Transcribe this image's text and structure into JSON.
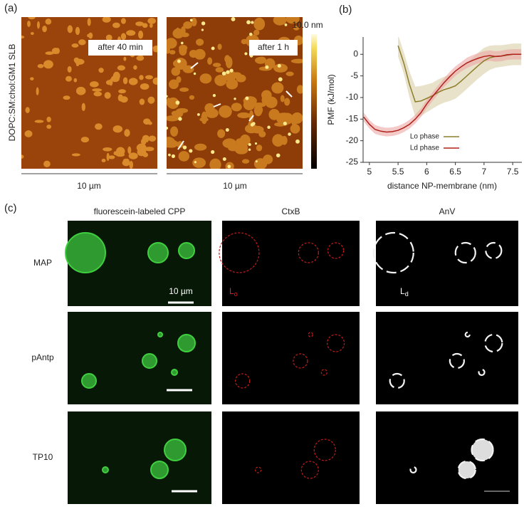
{
  "panel_a": {
    "label": "(a)",
    "side_label": "DOPC:SM:chol:GM1 SLB",
    "images": [
      {
        "caption": "after 40 min",
        "scale": "10 µm"
      },
      {
        "caption": "after 1 h",
        "scale": "10 µm"
      }
    ],
    "colorbar_max": "10.0 nm"
  },
  "panel_b": {
    "label": "(b)"
  },
  "chart_data": {
    "type": "line",
    "x_label": "distance NP-membrane (nm)",
    "y_label": "PMF (kJ/mol)",
    "x": [
      4.9,
      5.0,
      5.1,
      5.2,
      5.3,
      5.4,
      5.5,
      5.6,
      5.7,
      5.8,
      5.9,
      6.0,
      6.1,
      6.2,
      6.3,
      6.4,
      6.5,
      6.6,
      6.7,
      6.8,
      6.9,
      7.0,
      7.1,
      7.2,
      7.3,
      7.4,
      7.5,
      7.6,
      7.65
    ],
    "series": [
      {
        "name": "Lo phase",
        "color": "#8c7d2a",
        "band_color": "#d8cfa6",
        "values": [
          null,
          null,
          null,
          null,
          null,
          null,
          2,
          -2,
          -7,
          -11,
          -10.8,
          -10.2,
          -9.6,
          -8.8,
          -8.2,
          -7.8,
          -7.3,
          -6.2,
          -5.0,
          -3.8,
          -2.6,
          -1.5,
          -0.8,
          -0.5,
          -0.4,
          -0.2,
          0,
          0,
          0
        ],
        "errors": [
          null,
          null,
          null,
          null,
          null,
          null,
          2.5,
          2.5,
          3,
          3.5,
          3.5,
          3.2,
          3,
          3,
          3,
          3,
          3,
          3,
          3,
          3,
          3,
          3,
          2.8,
          2.6,
          2.5,
          2.5,
          2.5,
          2.5,
          2.5
        ]
      },
      {
        "name": "Ld phase",
        "color": "#b0201c",
        "band_color": "#eba7a3",
        "values": [
          -14.5,
          -16.2,
          -17.4,
          -17.8,
          -18.0,
          -17.9,
          -17.6,
          -17.0,
          -16.2,
          -15.0,
          -13.5,
          -11.5,
          -9.8,
          -8.2,
          -6.6,
          -5.2,
          -3.9,
          -2.9,
          -2.0,
          -1.4,
          -0.9,
          -0.5,
          -0.3,
          -0.5,
          -0.4,
          -0.1,
          0,
          0,
          0
        ],
        "errors": [
          1,
          1,
          1,
          1,
          1,
          1,
          1,
          1,
          1,
          1,
          1,
          1,
          1,
          1,
          1,
          1.1,
          1.1,
          1.1,
          1.2,
          1.2,
          1.2,
          1.2,
          1.2,
          1.2,
          1.2,
          1.2,
          1.2,
          1.2,
          1.2
        ]
      }
    ],
    "xlim": [
      4.89,
      7.66
    ],
    "ylim": [
      -25,
      4
    ],
    "xticks": [
      5,
      5.5,
      6,
      6.5,
      7,
      7.5
    ],
    "yticks": [
      0,
      -5,
      -10,
      -15,
      -20,
      -25
    ],
    "legend": "lower right"
  },
  "panel_c": {
    "label": "(c)",
    "columns": [
      "fluorescein-labeled CPP",
      "CtxB",
      "AnV"
    ],
    "rows": [
      "MAP",
      "pAntp",
      "TP10"
    ],
    "scale": "10 µm",
    "lo": {
      "main": "L",
      "sub": "o"
    },
    "ld": {
      "main": "L",
      "sub": "d"
    }
  }
}
